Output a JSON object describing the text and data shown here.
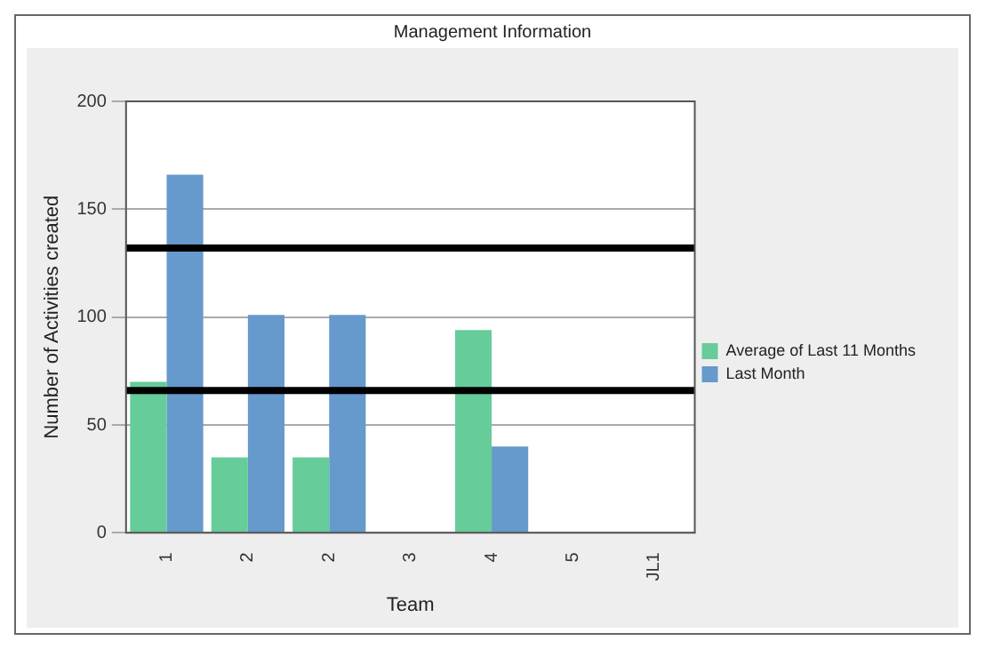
{
  "chart_data": {
    "type": "bar",
    "title": "Management Information",
    "xlabel": "Team",
    "ylabel": "Number of Activities created",
    "categories": [
      "1",
      "2",
      "2",
      "3",
      "4",
      "5",
      "JL1"
    ],
    "series": [
      {
        "name": "Average of Last 11 Months",
        "color": "#66cc99",
        "values": [
          70,
          35,
          35,
          0,
          94,
          0,
          0
        ]
      },
      {
        "name": "Last Month",
        "color": "#6699cc",
        "values": [
          166,
          101,
          101,
          0,
          40,
          0,
          0
        ]
      }
    ],
    "ylim": [
      0,
      200
    ],
    "yticks": [
      0,
      50,
      100,
      150,
      200
    ],
    "grid": "y",
    "legend": "right",
    "ref_lines": [
      {
        "axis": "y",
        "value": 132,
        "color": "#000000"
      },
      {
        "axis": "y",
        "value": 66,
        "color": "#000000"
      }
    ]
  }
}
